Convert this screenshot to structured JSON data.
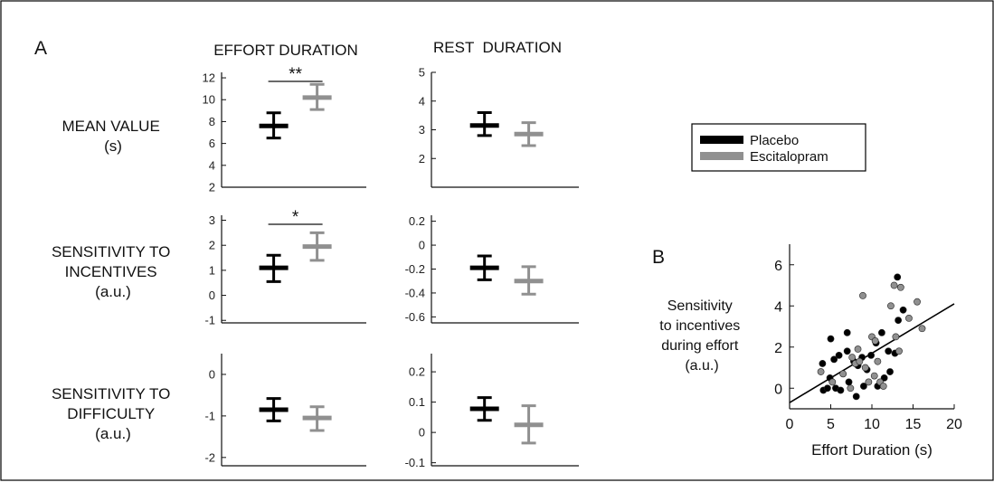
{
  "panel_labels": {
    "a": "A",
    "b": "B"
  },
  "columns": [
    "EFFORT DURATION",
    "REST  DURATION"
  ],
  "rows": [
    {
      "lines": [
        "MEAN VALUE",
        "(s)"
      ]
    },
    {
      "lines": [
        "SENSITIVITY TO",
        "INCENTIVES",
        "(a.u.)"
      ]
    },
    {
      "lines": [
        "SENSITIVITY TO",
        "DIFFICULTY",
        "(a.u.)"
      ]
    }
  ],
  "legend": {
    "items": [
      {
        "label": "Placebo",
        "color": "#000000"
      },
      {
        "label": "Escitalopram",
        "color": "#909090"
      }
    ]
  },
  "colors": {
    "placebo": "#000000",
    "escitalopram": "#909090"
  },
  "chart_data": [
    {
      "id": "effort-mean",
      "type": "errorbar",
      "panel": "A",
      "column": "EFFORT DURATION",
      "row": "MEAN VALUE",
      "ylim": [
        2,
        12.5
      ],
      "yticks": [
        2,
        4,
        6,
        8,
        10,
        12
      ],
      "groups": [
        {
          "name": "Placebo",
          "mean": 7.6,
          "low": 6.5,
          "high": 8.8
        },
        {
          "name": "Escitalopram",
          "mean": 10.2,
          "low": 9.1,
          "high": 11.4
        }
      ],
      "significance": "**"
    },
    {
      "id": "rest-mean",
      "type": "errorbar",
      "panel": "A",
      "column": "REST  DURATION",
      "row": "MEAN VALUE",
      "ylim": [
        1,
        5
      ],
      "yticks": [
        2,
        3,
        4,
        5
      ],
      "groups": [
        {
          "name": "Placebo",
          "mean": 3.15,
          "low": 2.8,
          "high": 3.6
        },
        {
          "name": "Escitalopram",
          "mean": 2.85,
          "low": 2.45,
          "high": 3.25
        }
      ]
    },
    {
      "id": "effort-incentives",
      "type": "errorbar",
      "panel": "A",
      "column": "EFFORT DURATION",
      "row": "SENSITIVITY TO INCENTIVES",
      "ylim": [
        -1.1,
        3.2
      ],
      "yticks": [
        -1,
        0,
        1,
        2,
        3
      ],
      "groups": [
        {
          "name": "Placebo",
          "mean": 1.1,
          "low": 0.55,
          "high": 1.6
        },
        {
          "name": "Escitalopram",
          "mean": 1.95,
          "low": 1.4,
          "high": 2.5
        }
      ],
      "significance": "*"
    },
    {
      "id": "rest-incentives",
      "type": "errorbar",
      "panel": "A",
      "column": "REST  DURATION",
      "row": "SENSITIVITY TO INCENTIVES",
      "ylim": [
        -0.65,
        0.25
      ],
      "yticks": [
        -0.6,
        -0.4,
        -0.2,
        0,
        0.2
      ],
      "groups": [
        {
          "name": "Placebo",
          "mean": -0.19,
          "low": -0.29,
          "high": -0.09
        },
        {
          "name": "Escitalopram",
          "mean": -0.3,
          "low": -0.41,
          "high": -0.18
        }
      ]
    },
    {
      "id": "effort-difficulty",
      "type": "errorbar",
      "panel": "A",
      "column": "EFFORT DURATION",
      "row": "SENSITIVITY TO DIFFICULTY",
      "ylim": [
        -2.2,
        0.5
      ],
      "yticks": [
        -2,
        -1,
        0
      ],
      "groups": [
        {
          "name": "Placebo",
          "mean": -0.85,
          "low": -1.12,
          "high": -0.58
        },
        {
          "name": "Escitalopram",
          "mean": -1.05,
          "low": -1.35,
          "high": -0.78
        }
      ]
    },
    {
      "id": "rest-difficulty",
      "type": "errorbar",
      "panel": "A",
      "column": "REST  DURATION",
      "row": "SENSITIVITY TO DIFFICULTY",
      "ylim": [
        -0.11,
        0.26
      ],
      "yticks": [
        -0.1,
        0,
        0.1,
        0.2
      ],
      "groups": [
        {
          "name": "Placebo",
          "mean": 0.078,
          "low": 0.04,
          "high": 0.115
        },
        {
          "name": "Escitalopram",
          "mean": 0.025,
          "low": -0.035,
          "high": 0.088
        }
      ]
    },
    {
      "id": "scatter-b",
      "type": "scatter",
      "panel": "B",
      "xlabel": "Effort Duration (s)",
      "ylabel_lines": [
        "Sensitivity",
        "to incentives",
        "during effort",
        "(a.u.)"
      ],
      "xlim": [
        0,
        20
      ],
      "ylim": [
        -1,
        7
      ],
      "xticks": [
        0,
        5,
        10,
        15,
        20
      ],
      "yticks": [
        0,
        2,
        4,
        6
      ],
      "fit_line": {
        "x": [
          0,
          20
        ],
        "y": [
          -0.7,
          4.1
        ]
      },
      "series": [
        {
          "name": "Placebo",
          "points": [
            [
              4,
              1.2
            ],
            [
              4.1,
              -0.1
            ],
            [
              4.6,
              0
            ],
            [
              4.9,
              0.5
            ],
            [
              5,
              2.4
            ],
            [
              5.4,
              1.4
            ],
            [
              5.6,
              0
            ],
            [
              6,
              1.6
            ],
            [
              6.2,
              -0.1
            ],
            [
              7,
              1.8
            ],
            [
              7,
              2.7
            ],
            [
              7.2,
              0.3
            ],
            [
              7.8,
              1.3
            ],
            [
              8.1,
              -0.4
            ],
            [
              8.3,
              1.1
            ],
            [
              8.8,
              1.5
            ],
            [
              9,
              0.1
            ],
            [
              9.4,
              0.9
            ],
            [
              9.9,
              1.6
            ],
            [
              10.5,
              2.2
            ],
            [
              10.7,
              0.1
            ],
            [
              11.2,
              2.7
            ],
            [
              11.5,
              0.5
            ],
            [
              12,
              1.8
            ],
            [
              12.2,
              0.8
            ],
            [
              12.8,
              1.7
            ],
            [
              13.1,
              5.4
            ],
            [
              13.2,
              3.3
            ],
            [
              13.8,
              3.8
            ]
          ]
        },
        {
          "name": "Escitalopram",
          "points": [
            [
              3.8,
              0.8
            ],
            [
              5.2,
              0.3
            ],
            [
              6.5,
              0.7
            ],
            [
              7.4,
              0
            ],
            [
              7.6,
              1.5
            ],
            [
              8,
              1.2
            ],
            [
              8.3,
              1.9
            ],
            [
              8.5,
              1.3
            ],
            [
              8.9,
              4.5
            ],
            [
              9.2,
              1
            ],
            [
              9.6,
              0.3
            ],
            [
              10,
              2.5
            ],
            [
              10.3,
              0.6
            ],
            [
              10.4,
              2.3
            ],
            [
              10.7,
              1.3
            ],
            [
              11,
              0.3
            ],
            [
              11.4,
              0.1
            ],
            [
              12.3,
              4
            ],
            [
              12.7,
              5
            ],
            [
              12.9,
              2.5
            ],
            [
              13.3,
              1.8
            ],
            [
              13.5,
              4.9
            ],
            [
              14.5,
              3.4
            ],
            [
              15.5,
              4.2
            ],
            [
              16.1,
              2.9
            ]
          ]
        }
      ]
    }
  ]
}
